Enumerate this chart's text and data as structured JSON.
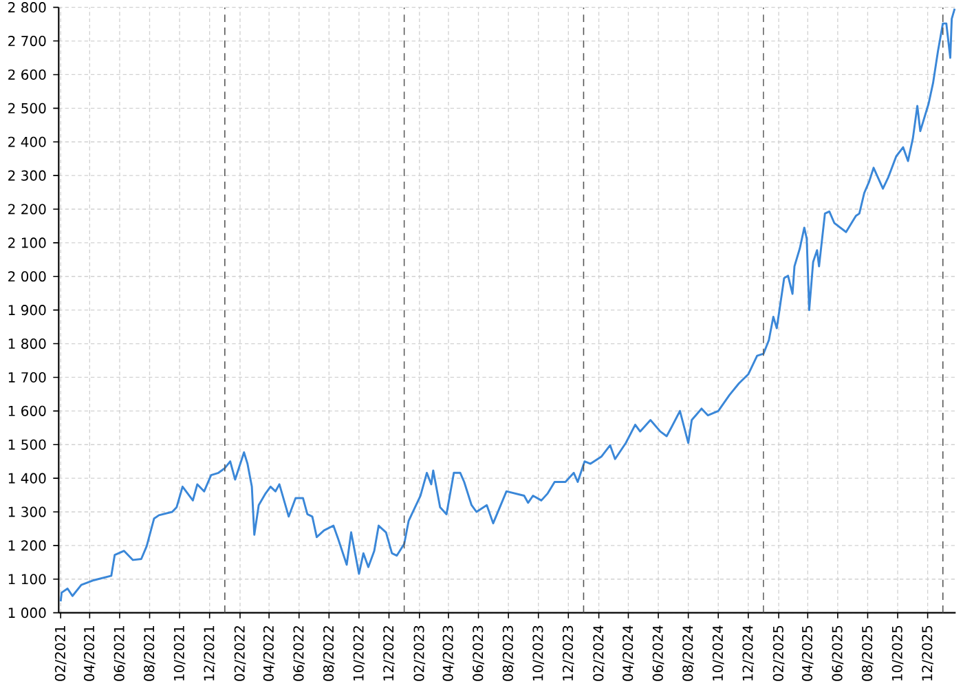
{
  "chart_data": {
    "type": "line",
    "grid": true,
    "xlim": [
      "2021-01-28",
      "2026-01-27"
    ],
    "ylim": [
      1000,
      2800
    ],
    "yticks": [
      {
        "value": 1000,
        "label": "1 000"
      },
      {
        "value": 1100,
        "label": "1 100"
      },
      {
        "value": 1200,
        "label": "1 200"
      },
      {
        "value": 1300,
        "label": "1 300"
      },
      {
        "value": 1400,
        "label": "1 400"
      },
      {
        "value": 1500,
        "label": "1 500"
      },
      {
        "value": 1600,
        "label": "1 600"
      },
      {
        "value": 1700,
        "label": "1 700"
      },
      {
        "value": 1800,
        "label": "1 800"
      },
      {
        "value": 1900,
        "label": "1 900"
      },
      {
        "value": 2000,
        "label": "2 000"
      },
      {
        "value": 2100,
        "label": "2 100"
      },
      {
        "value": 2200,
        "label": "2 200"
      },
      {
        "value": 2300,
        "label": "2 300"
      },
      {
        "value": 2400,
        "label": "2 400"
      },
      {
        "value": 2500,
        "label": "2 500"
      },
      {
        "value": 2600,
        "label": "2 600"
      },
      {
        "value": 2700,
        "label": "2 700"
      },
      {
        "value": 2800,
        "label": "2 800"
      }
    ],
    "xticks": [
      {
        "value": "2021-02-01",
        "label": "02/2021"
      },
      {
        "value": "2021-04-01",
        "label": "04/2021"
      },
      {
        "value": "2021-06-01",
        "label": "06/2021"
      },
      {
        "value": "2021-08-01",
        "label": "08/2021"
      },
      {
        "value": "2021-10-01",
        "label": "10/2021"
      },
      {
        "value": "2021-12-01",
        "label": "12/2021"
      },
      {
        "value": "2022-02-01",
        "label": "02/2022"
      },
      {
        "value": "2022-04-01",
        "label": "04/2022"
      },
      {
        "value": "2022-06-01",
        "label": "06/2022"
      },
      {
        "value": "2022-08-01",
        "label": "08/2022"
      },
      {
        "value": "2022-10-01",
        "label": "10/2022"
      },
      {
        "value": "2022-12-01",
        "label": "12/2022"
      },
      {
        "value": "2023-02-01",
        "label": "02/2023"
      },
      {
        "value": "2023-04-01",
        "label": "04/2023"
      },
      {
        "value": "2023-06-01",
        "label": "06/2023"
      },
      {
        "value": "2023-08-01",
        "label": "08/2023"
      },
      {
        "value": "2023-10-01",
        "label": "10/2023"
      },
      {
        "value": "2023-12-01",
        "label": "12/2023"
      },
      {
        "value": "2024-02-01",
        "label": "02/2024"
      },
      {
        "value": "2024-04-01",
        "label": "04/2024"
      },
      {
        "value": "2024-06-01",
        "label": "06/2024"
      },
      {
        "value": "2024-08-01",
        "label": "08/2024"
      },
      {
        "value": "2024-10-01",
        "label": "10/2024"
      },
      {
        "value": "2024-12-01",
        "label": "12/2024"
      },
      {
        "value": "2025-02-01",
        "label": "02/2025"
      },
      {
        "value": "2025-04-01",
        "label": "04/2025"
      },
      {
        "value": "2025-06-01",
        "label": "06/2025"
      },
      {
        "value": "2025-08-01",
        "label": "08/2025"
      },
      {
        "value": "2025-10-01",
        "label": "10/2025"
      },
      {
        "value": "2025-12-01",
        "label": "12/2025"
      }
    ],
    "ref_lines": [
      {
        "axis": "x",
        "value": "2022-01-01",
        "color": "#555555",
        "line_style": "dashed"
      },
      {
        "axis": "x",
        "value": "2023-01-01",
        "color": "#555555",
        "line_style": "dashed"
      },
      {
        "axis": "x",
        "value": "2024-01-01",
        "color": "#555555",
        "line_style": "dashed"
      },
      {
        "axis": "x",
        "value": "2025-01-01",
        "color": "#555555",
        "line_style": "dashed"
      },
      {
        "axis": "x",
        "value": "2026-01-01",
        "color": "#555555",
        "line_style": "dashed"
      }
    ],
    "x": [
      "2021-02-01",
      "2021-02-03",
      "2021-02-15",
      "2021-02-25",
      "2021-03-15",
      "2021-04-10",
      "2021-05-15",
      "2021-05-22",
      "2021-06-10",
      "2021-06-28",
      "2021-07-15",
      "2021-07-26",
      "2021-08-10",
      "2021-08-20",
      "2021-09-16",
      "2021-09-25",
      "2021-10-07",
      "2021-10-28",
      "2021-11-06",
      "2021-11-20",
      "2021-12-04",
      "2021-12-19",
      "2022-01-01",
      "2022-01-12",
      "2022-01-22",
      "2022-02-09",
      "2022-02-16",
      "2022-02-25",
      "2022-03-02",
      "2022-03-11",
      "2022-03-25",
      "2022-04-04",
      "2022-04-14",
      "2022-04-22",
      "2022-05-11",
      "2022-05-25",
      "2022-06-09",
      "2022-06-18",
      "2022-06-28",
      "2022-07-07",
      "2022-07-22",
      "2022-08-10",
      "2022-08-20",
      "2022-09-06",
      "2022-09-15",
      "2022-10-01",
      "2022-10-10",
      "2022-10-20",
      "2022-11-01",
      "2022-11-10",
      "2022-11-25",
      "2022-12-07",
      "2022-12-17",
      "2023-01-01",
      "2023-01-10",
      "2023-02-03",
      "2023-02-16",
      "2023-02-25",
      "2023-03-01",
      "2023-03-15",
      "2023-03-28",
      "2023-04-12",
      "2023-04-25",
      "2023-05-03",
      "2023-05-18",
      "2023-05-28",
      "2023-06-18",
      "2023-07-01",
      "2023-07-28",
      "2023-09-02",
      "2023-09-10",
      "2023-09-20",
      "2023-10-07",
      "2023-10-20",
      "2023-11-03",
      "2023-11-25",
      "2023-12-12",
      "2023-12-20",
      "2024-01-03",
      "2024-01-15",
      "2024-02-06",
      "2024-02-24",
      "2024-03-05",
      "2024-03-27",
      "2024-04-15",
      "2024-04-25",
      "2024-05-16",
      "2024-06-05",
      "2024-06-18",
      "2024-06-28",
      "2024-07-15",
      "2024-08-01",
      "2024-08-08",
      "2024-08-28",
      "2024-09-10",
      "2024-10-01",
      "2024-10-24",
      "2024-11-12",
      "2024-12-01",
      "2024-12-19",
      "2025-01-01",
      "2025-01-12",
      "2025-01-21",
      "2025-01-28",
      "2025-02-12",
      "2025-02-20",
      "2025-03-01",
      "2025-03-05",
      "2025-03-16",
      "2025-03-25",
      "2025-03-30",
      "2025-04-04",
      "2025-04-12",
      "2025-04-20",
      "2025-04-24",
      "2025-05-06",
      "2025-05-15",
      "2025-05-25",
      "2025-06-18",
      "2025-07-08",
      "2025-07-15",
      "2025-07-25",
      "2025-08-04",
      "2025-08-13",
      "2025-09-01",
      "2025-09-12",
      "2025-09-28",
      "2025-10-12",
      "2025-10-22",
      "2025-11-01",
      "2025-11-10",
      "2025-11-16",
      "2025-12-03",
      "2025-12-12",
      "2025-12-22",
      "2026-01-01",
      "2026-01-08",
      "2026-01-16",
      "2026-01-19",
      "2026-01-25"
    ],
    "series": [
      {
        "color": "#3a87d8",
        "values": [
          1034,
          1060,
          1072,
          1050,
          1083,
          1097,
          1110,
          1172,
          1184,
          1157,
          1160,
          1198,
          1280,
          1290,
          1300,
          1314,
          1375,
          1334,
          1382,
          1361,
          1409,
          1416,
          1430,
          1450,
          1396,
          1477,
          1444,
          1375,
          1232,
          1320,
          1355,
          1375,
          1361,
          1382,
          1286,
          1341,
          1341,
          1293,
          1286,
          1225,
          1245,
          1259,
          1218,
          1143,
          1239,
          1116,
          1177,
          1136,
          1184,
          1259,
          1239,
          1177,
          1170,
          1205,
          1273,
          1348,
          1416,
          1382,
          1423,
          1314,
          1293,
          1416,
          1416,
          1389,
          1320,
          1300,
          1320,
          1266,
          1361,
          1348,
          1327,
          1348,
          1334,
          1355,
          1389,
          1389,
          1416,
          1389,
          1450,
          1443,
          1464,
          1498,
          1457,
          1505,
          1559,
          1539,
          1573,
          1539,
          1525,
          1552,
          1600,
          1505,
          1573,
          1607,
          1587,
          1600,
          1648,
          1682,
          1709,
          1764,
          1770,
          1811,
          1880,
          1846,
          1995,
          2002,
          1948,
          2030,
          2084,
          2145,
          2112,
          1900,
          2043,
          2078,
          2030,
          2187,
          2193,
          2159,
          2132,
          2180,
          2187,
          2248,
          2282,
          2323,
          2261,
          2295,
          2357,
          2384,
          2343,
          2411,
          2507,
          2432,
          2514,
          2575,
          2670,
          2752,
          2752,
          2650,
          2766,
          2796
        ]
      }
    ]
  }
}
